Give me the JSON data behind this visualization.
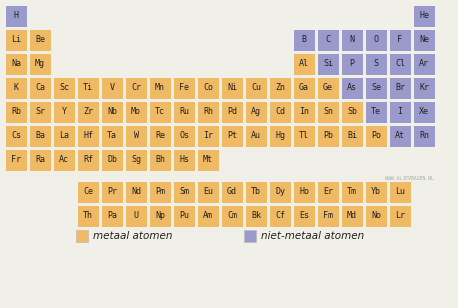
{
  "metal_color": "#f0b963",
  "nonmetal_color": "#9999cc",
  "bg_color": "#f0f0e8",
  "font_size": 6.0,
  "legend_font_size": 7.5,
  "watermark": "WWW.ALJEVRAGEN.NL",
  "legend_metal": "metaal atomen",
  "legend_nonmetal": "niet-metaal atomen",
  "table": [
    {
      "symbol": "H",
      "row": 0,
      "col": 0,
      "type": "nonmetal"
    },
    {
      "symbol": "He",
      "row": 0,
      "col": 17,
      "type": "nonmetal"
    },
    {
      "symbol": "Li",
      "row": 1,
      "col": 0,
      "type": "metal"
    },
    {
      "symbol": "Be",
      "row": 1,
      "col": 1,
      "type": "metal"
    },
    {
      "symbol": "B",
      "row": 1,
      "col": 12,
      "type": "nonmetal"
    },
    {
      "symbol": "C",
      "row": 1,
      "col": 13,
      "type": "nonmetal"
    },
    {
      "symbol": "N",
      "row": 1,
      "col": 14,
      "type": "nonmetal"
    },
    {
      "symbol": "O",
      "row": 1,
      "col": 15,
      "type": "nonmetal"
    },
    {
      "symbol": "F",
      "row": 1,
      "col": 16,
      "type": "nonmetal"
    },
    {
      "symbol": "Ne",
      "row": 1,
      "col": 17,
      "type": "nonmetal"
    },
    {
      "symbol": "Na",
      "row": 2,
      "col": 0,
      "type": "metal"
    },
    {
      "symbol": "Mg",
      "row": 2,
      "col": 1,
      "type": "metal"
    },
    {
      "symbol": "Al",
      "row": 2,
      "col": 12,
      "type": "metal"
    },
    {
      "symbol": "Si",
      "row": 2,
      "col": 13,
      "type": "nonmetal"
    },
    {
      "symbol": "P",
      "row": 2,
      "col": 14,
      "type": "nonmetal"
    },
    {
      "symbol": "S",
      "row": 2,
      "col": 15,
      "type": "nonmetal"
    },
    {
      "symbol": "Cl",
      "row": 2,
      "col": 16,
      "type": "nonmetal"
    },
    {
      "symbol": "Ar",
      "row": 2,
      "col": 17,
      "type": "nonmetal"
    },
    {
      "symbol": "K",
      "row": 3,
      "col": 0,
      "type": "metal"
    },
    {
      "symbol": "Ca",
      "row": 3,
      "col": 1,
      "type": "metal"
    },
    {
      "symbol": "Sc",
      "row": 3,
      "col": 2,
      "type": "metal"
    },
    {
      "symbol": "Ti",
      "row": 3,
      "col": 3,
      "type": "metal"
    },
    {
      "symbol": "V",
      "row": 3,
      "col": 4,
      "type": "metal"
    },
    {
      "symbol": "Cr",
      "row": 3,
      "col": 5,
      "type": "metal"
    },
    {
      "symbol": "Mn",
      "row": 3,
      "col": 6,
      "type": "metal"
    },
    {
      "symbol": "Fe",
      "row": 3,
      "col": 7,
      "type": "metal"
    },
    {
      "symbol": "Co",
      "row": 3,
      "col": 8,
      "type": "metal"
    },
    {
      "symbol": "Ni",
      "row": 3,
      "col": 9,
      "type": "metal"
    },
    {
      "symbol": "Cu",
      "row": 3,
      "col": 10,
      "type": "metal"
    },
    {
      "symbol": "Zn",
      "row": 3,
      "col": 11,
      "type": "metal"
    },
    {
      "symbol": "Ga",
      "row": 3,
      "col": 12,
      "type": "metal"
    },
    {
      "symbol": "Ge",
      "row": 3,
      "col": 13,
      "type": "metal"
    },
    {
      "symbol": "As",
      "row": 3,
      "col": 14,
      "type": "nonmetal"
    },
    {
      "symbol": "Se",
      "row": 3,
      "col": 15,
      "type": "nonmetal"
    },
    {
      "symbol": "Br",
      "row": 3,
      "col": 16,
      "type": "nonmetal"
    },
    {
      "symbol": "Kr",
      "row": 3,
      "col": 17,
      "type": "nonmetal"
    },
    {
      "symbol": "Rb",
      "row": 4,
      "col": 0,
      "type": "metal"
    },
    {
      "symbol": "Sr",
      "row": 4,
      "col": 1,
      "type": "metal"
    },
    {
      "symbol": "Y",
      "row": 4,
      "col": 2,
      "type": "metal"
    },
    {
      "symbol": "Zr",
      "row": 4,
      "col": 3,
      "type": "metal"
    },
    {
      "symbol": "Nb",
      "row": 4,
      "col": 4,
      "type": "metal"
    },
    {
      "symbol": "Mo",
      "row": 4,
      "col": 5,
      "type": "metal"
    },
    {
      "symbol": "Tc",
      "row": 4,
      "col": 6,
      "type": "metal"
    },
    {
      "symbol": "Ru",
      "row": 4,
      "col": 7,
      "type": "metal"
    },
    {
      "symbol": "Rh",
      "row": 4,
      "col": 8,
      "type": "metal"
    },
    {
      "symbol": "Pd",
      "row": 4,
      "col": 9,
      "type": "metal"
    },
    {
      "symbol": "Ag",
      "row": 4,
      "col": 10,
      "type": "metal"
    },
    {
      "symbol": "Cd",
      "row": 4,
      "col": 11,
      "type": "metal"
    },
    {
      "symbol": "In",
      "row": 4,
      "col": 12,
      "type": "metal"
    },
    {
      "symbol": "Sn",
      "row": 4,
      "col": 13,
      "type": "metal"
    },
    {
      "symbol": "Sb",
      "row": 4,
      "col": 14,
      "type": "metal"
    },
    {
      "symbol": "Te",
      "row": 4,
      "col": 15,
      "type": "nonmetal"
    },
    {
      "symbol": "I",
      "row": 4,
      "col": 16,
      "type": "nonmetal"
    },
    {
      "symbol": "Xe",
      "row": 4,
      "col": 17,
      "type": "nonmetal"
    },
    {
      "symbol": "Cs",
      "row": 5,
      "col": 0,
      "type": "metal"
    },
    {
      "symbol": "Ba",
      "row": 5,
      "col": 1,
      "type": "metal"
    },
    {
      "symbol": "La",
      "row": 5,
      "col": 2,
      "type": "metal"
    },
    {
      "symbol": "Hf",
      "row": 5,
      "col": 3,
      "type": "metal"
    },
    {
      "symbol": "Ta",
      "row": 5,
      "col": 4,
      "type": "metal"
    },
    {
      "symbol": "W",
      "row": 5,
      "col": 5,
      "type": "metal"
    },
    {
      "symbol": "Re",
      "row": 5,
      "col": 6,
      "type": "metal"
    },
    {
      "symbol": "Os",
      "row": 5,
      "col": 7,
      "type": "metal"
    },
    {
      "symbol": "Ir",
      "row": 5,
      "col": 8,
      "type": "metal"
    },
    {
      "symbol": "Pt",
      "row": 5,
      "col": 9,
      "type": "metal"
    },
    {
      "symbol": "Au",
      "row": 5,
      "col": 10,
      "type": "metal"
    },
    {
      "symbol": "Hg",
      "row": 5,
      "col": 11,
      "type": "metal"
    },
    {
      "symbol": "Tl",
      "row": 5,
      "col": 12,
      "type": "metal"
    },
    {
      "symbol": "Pb",
      "row": 5,
      "col": 13,
      "type": "metal"
    },
    {
      "symbol": "Bi",
      "row": 5,
      "col": 14,
      "type": "metal"
    },
    {
      "symbol": "Po",
      "row": 5,
      "col": 15,
      "type": "metal"
    },
    {
      "symbol": "At",
      "row": 5,
      "col": 16,
      "type": "nonmetal"
    },
    {
      "symbol": "Rn",
      "row": 5,
      "col": 17,
      "type": "nonmetal"
    },
    {
      "symbol": "Fr",
      "row": 6,
      "col": 0,
      "type": "metal"
    },
    {
      "symbol": "Ra",
      "row": 6,
      "col": 1,
      "type": "metal"
    },
    {
      "symbol": "Ac",
      "row": 6,
      "col": 2,
      "type": "metal"
    },
    {
      "symbol": "Rf",
      "row": 6,
      "col": 3,
      "type": "metal"
    },
    {
      "symbol": "Db",
      "row": 6,
      "col": 4,
      "type": "metal"
    },
    {
      "symbol": "Sg",
      "row": 6,
      "col": 5,
      "type": "metal"
    },
    {
      "symbol": "Bh",
      "row": 6,
      "col": 6,
      "type": "metal"
    },
    {
      "symbol": "Hs",
      "row": 6,
      "col": 7,
      "type": "metal"
    },
    {
      "symbol": "Mt",
      "row": 6,
      "col": 8,
      "type": "metal"
    },
    {
      "symbol": "Ce",
      "row": 8,
      "col": 3,
      "type": "metal"
    },
    {
      "symbol": "Pr",
      "row": 8,
      "col": 4,
      "type": "metal"
    },
    {
      "symbol": "Nd",
      "row": 8,
      "col": 5,
      "type": "metal"
    },
    {
      "symbol": "Pm",
      "row": 8,
      "col": 6,
      "type": "metal"
    },
    {
      "symbol": "Sm",
      "row": 8,
      "col": 7,
      "type": "metal"
    },
    {
      "symbol": "Eu",
      "row": 8,
      "col": 8,
      "type": "metal"
    },
    {
      "symbol": "Gd",
      "row": 8,
      "col": 9,
      "type": "metal"
    },
    {
      "symbol": "Tb",
      "row": 8,
      "col": 10,
      "type": "metal"
    },
    {
      "symbol": "Dy",
      "row": 8,
      "col": 11,
      "type": "metal"
    },
    {
      "symbol": "Ho",
      "row": 8,
      "col": 12,
      "type": "metal"
    },
    {
      "symbol": "Er",
      "row": 8,
      "col": 13,
      "type": "metal"
    },
    {
      "symbol": "Tm",
      "row": 8,
      "col": 14,
      "type": "metal"
    },
    {
      "symbol": "Yb",
      "row": 8,
      "col": 15,
      "type": "metal"
    },
    {
      "symbol": "Lu",
      "row": 8,
      "col": 16,
      "type": "metal"
    },
    {
      "symbol": "Th",
      "row": 9,
      "col": 3,
      "type": "metal"
    },
    {
      "symbol": "Pa",
      "row": 9,
      "col": 4,
      "type": "metal"
    },
    {
      "symbol": "U",
      "row": 9,
      "col": 5,
      "type": "metal"
    },
    {
      "symbol": "Np",
      "row": 9,
      "col": 6,
      "type": "metal"
    },
    {
      "symbol": "Pu",
      "row": 9,
      "col": 7,
      "type": "metal"
    },
    {
      "symbol": "Am",
      "row": 9,
      "col": 8,
      "type": "metal"
    },
    {
      "symbol": "Cm",
      "row": 9,
      "col": 9,
      "type": "metal"
    },
    {
      "symbol": "Bk",
      "row": 9,
      "col": 10,
      "type": "metal"
    },
    {
      "symbol": "Cf",
      "row": 9,
      "col": 11,
      "type": "metal"
    },
    {
      "symbol": "Es",
      "row": 9,
      "col": 12,
      "type": "metal"
    },
    {
      "symbol": "Fm",
      "row": 9,
      "col": 13,
      "type": "metal"
    },
    {
      "symbol": "Md",
      "row": 9,
      "col": 14,
      "type": "metal"
    },
    {
      "symbol": "No",
      "row": 9,
      "col": 15,
      "type": "metal"
    },
    {
      "symbol": "Lr",
      "row": 9,
      "col": 16,
      "type": "metal"
    }
  ]
}
